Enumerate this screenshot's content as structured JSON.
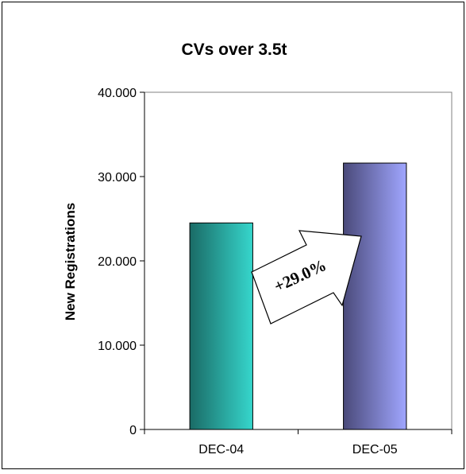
{
  "chart_data": {
    "type": "bar",
    "title": "CVs over 3.5t",
    "ylabel": "New Registrations",
    "xlabel": "",
    "categories": [
      "DEC-04",
      "DEC-05"
    ],
    "values": [
      24500,
      31600
    ],
    "ylim": [
      0,
      40000
    ],
    "yticks": [
      0,
      10000,
      20000,
      30000,
      40000
    ],
    "ytick_labels": [
      "0",
      "10.000",
      "20.000",
      "30.000",
      "40.000"
    ],
    "grid": false,
    "bar_gradients": [
      [
        "#1a6b66",
        "#36d6cc"
      ],
      [
        "#4a4a7a",
        "#a0a6ff"
      ]
    ],
    "annotation": {
      "text": "+29.0%",
      "shape": "arrow"
    }
  }
}
